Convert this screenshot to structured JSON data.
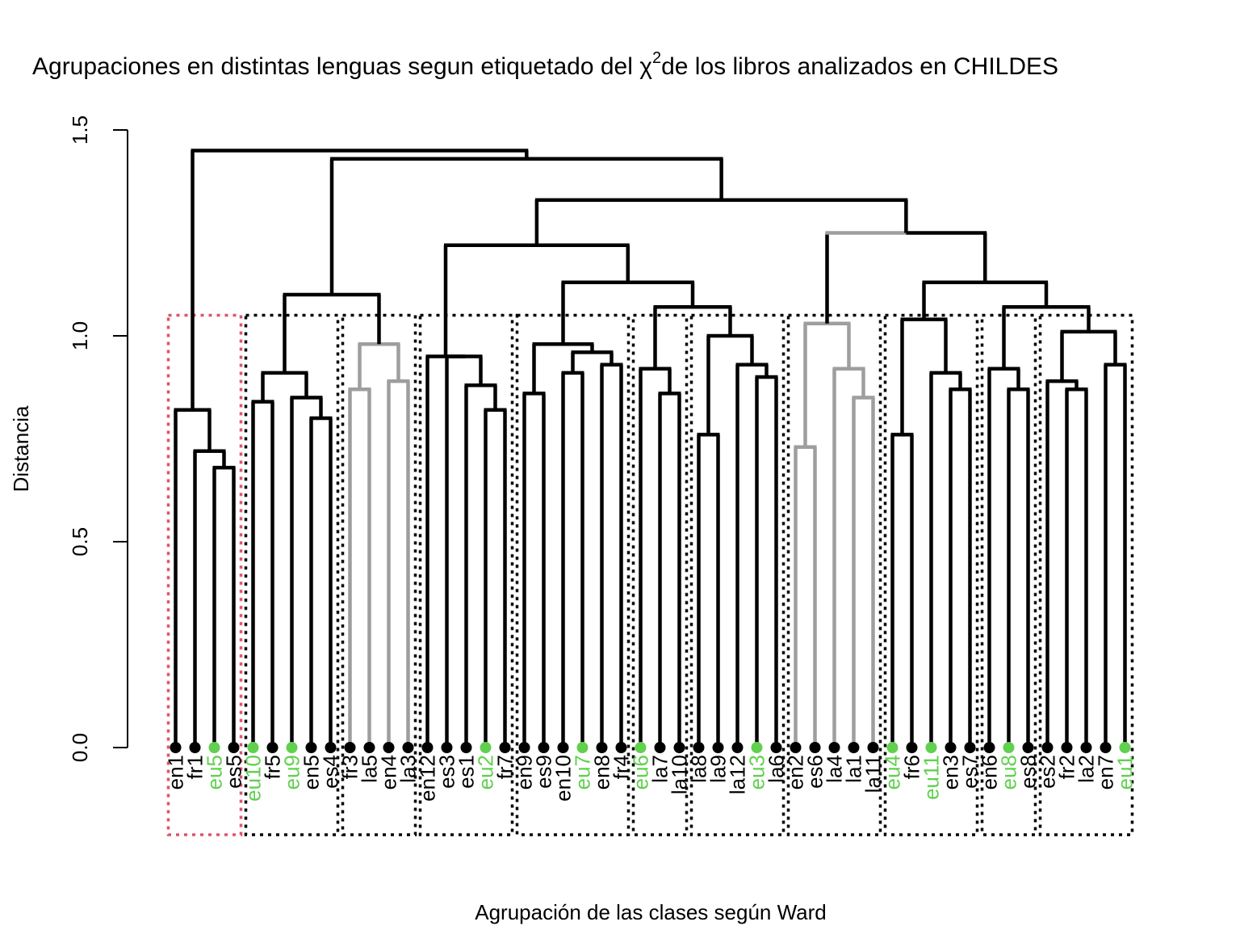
{
  "chart_data": {
    "type": "dendrogram",
    "title": "Agrupaciones en distintas lenguas segun etiquetado del χ²de los libros analizados en CHILDES",
    "title_parts": {
      "before": "Agrupaciones en distintas lenguas segun etiquetado del χ",
      "superscript": "2",
      "after": "de los libros analizados en CHILDES"
    },
    "xlabel": "Agrupación de las clases según Ward",
    "ylabel": "Distancia",
    "ylim": [
      0,
      1.5
    ],
    "yticks": [
      0.0,
      0.5,
      1.0,
      1.5
    ],
    "ytick_labels": [
      "0.0",
      "0.5",
      "1.0",
      "1.5"
    ],
    "colors": {
      "default": "#000000",
      "basque": "#61D04F",
      "gray_branch": "#9E9E9E",
      "highlight_box": "#DF536B",
      "box": "#000000"
    },
    "leaves": [
      "en1",
      "fr1",
      "eu5",
      "es5",
      "eu10",
      "fr5",
      "eu9",
      "en5",
      "es4",
      "fr3",
      "la5",
      "en4",
      "la3",
      "en12",
      "es3",
      "es1",
      "eu2",
      "fr7",
      "en9",
      "es9",
      "en10",
      "eu7",
      "en8",
      "fr4",
      "eu6",
      "la7",
      "la10",
      "la8",
      "la9",
      "la12",
      "eu3",
      "la6",
      "en2",
      "es6",
      "la4",
      "la1",
      "la11",
      "eu4",
      "fr6",
      "eu11",
      "en3",
      "es7",
      "en6",
      "eu8",
      "es8",
      "es2",
      "fr2",
      "la2",
      "en7",
      "eu1"
    ],
    "highlight_leaves": [
      "eu5",
      "eu10",
      "eu9",
      "eu2",
      "eu7",
      "eu6",
      "eu3",
      "eu4",
      "eu11",
      "eu8",
      "eu1"
    ],
    "merges": [
      {
        "id": "n1",
        "children": [
          "es5",
          "eu5"
        ],
        "height": 0.68
      },
      {
        "id": "n2",
        "children": [
          "fr1",
          "n1"
        ],
        "height": 0.72
      },
      {
        "id": "n3",
        "children": [
          "en1",
          "n2"
        ],
        "height": 0.82
      },
      {
        "id": "n4",
        "children": [
          "es4",
          "en5"
        ],
        "height": 0.8
      },
      {
        "id": "n5",
        "children": [
          "eu9",
          "n4"
        ],
        "height": 0.85
      },
      {
        "id": "n6",
        "children": [
          "fr5",
          "eu10"
        ],
        "height": 0.84
      },
      {
        "id": "n7",
        "children": [
          "n6",
          "n5"
        ],
        "height": 0.91
      },
      {
        "id": "n8",
        "children": [
          "la5",
          "fr3"
        ],
        "height": 0.87,
        "color": "gray"
      },
      {
        "id": "n9",
        "children": [
          "la3",
          "en4"
        ],
        "height": 0.89,
        "color": "gray"
      },
      {
        "id": "n10",
        "children": [
          "n8",
          "n9"
        ],
        "height": 0.98,
        "color": "gray"
      },
      {
        "id": "n11",
        "children": [
          "n7",
          "n10"
        ],
        "height": 1.1
      },
      {
        "id": "n12",
        "children": [
          "fr7",
          "eu2"
        ],
        "height": 0.82
      },
      {
        "id": "n13",
        "children": [
          "es1",
          "n12"
        ],
        "height": 0.88
      },
      {
        "id": "n14",
        "children": [
          "es3",
          "n13"
        ],
        "height": 0.95
      },
      {
        "id": "n15",
        "children": [
          "en12",
          "n14"
        ],
        "height": 0.95
      },
      {
        "id": "n16",
        "children": [
          "es9",
          "en9"
        ],
        "height": 0.86
      },
      {
        "id": "n17",
        "children": [
          "eu7",
          "en10"
        ],
        "height": 0.91
      },
      {
        "id": "n18",
        "children": [
          "fr4",
          "en8"
        ],
        "height": 0.93
      },
      {
        "id": "n19",
        "children": [
          "n17",
          "n18"
        ],
        "height": 0.96
      },
      {
        "id": "n20",
        "children": [
          "n16",
          "n19"
        ],
        "height": 0.98
      },
      {
        "id": "n21",
        "children": [
          "la10",
          "la7"
        ],
        "height": 0.86
      },
      {
        "id": "n22",
        "children": [
          "eu6",
          "n21"
        ],
        "height": 0.92
      },
      {
        "id": "n23",
        "children": [
          "la9",
          "la8"
        ],
        "height": 0.76
      },
      {
        "id": "n24",
        "children": [
          "la6",
          "eu3"
        ],
        "height": 0.9
      },
      {
        "id": "n25",
        "children": [
          "la12",
          "n24"
        ],
        "height": 0.93
      },
      {
        "id": "n26",
        "children": [
          "n23",
          "n25"
        ],
        "height": 1.0
      },
      {
        "id": "n27",
        "children": [
          "n22",
          "n26"
        ],
        "height": 1.07
      },
      {
        "id": "n28",
        "children": [
          "n20",
          "n27"
        ],
        "height": 1.13
      },
      {
        "id": "n29",
        "children": [
          "n15",
          "n28"
        ],
        "height": 1.22
      },
      {
        "id": "n30",
        "children": [
          "es6",
          "en2"
        ],
        "height": 0.73,
        "color": "gray"
      },
      {
        "id": "n31",
        "children": [
          "la11",
          "la1"
        ],
        "height": 0.85,
        "color": "gray"
      },
      {
        "id": "n32",
        "children": [
          "la4",
          "n31"
        ],
        "height": 0.92,
        "color": "gray"
      },
      {
        "id": "n33",
        "children": [
          "n30",
          "n32"
        ],
        "height": 1.03,
        "color": "gray"
      },
      {
        "id": "n34",
        "children": [
          "fr6",
          "eu4"
        ],
        "height": 0.76
      },
      {
        "id": "n35",
        "children": [
          "es7",
          "en3"
        ],
        "height": 0.87
      },
      {
        "id": "n36",
        "children": [
          "eu11",
          "n35"
        ],
        "height": 0.91
      },
      {
        "id": "n37",
        "children": [
          "n34",
          "n36"
        ],
        "height": 1.04
      },
      {
        "id": "n38",
        "children": [
          "es8",
          "eu8"
        ],
        "height": 0.87
      },
      {
        "id": "n39",
        "children": [
          "en6",
          "n38"
        ],
        "height": 0.92
      },
      {
        "id": "n40",
        "children": [
          "la2",
          "fr2"
        ],
        "height": 0.87
      },
      {
        "id": "n41",
        "children": [
          "es2",
          "n40"
        ],
        "height": 0.89
      },
      {
        "id": "n42",
        "children": [
          "eu1",
          "en7"
        ],
        "height": 0.93
      },
      {
        "id": "n43",
        "children": [
          "n41",
          "n42"
        ],
        "height": 1.01
      },
      {
        "id": "n44",
        "children": [
          "n39",
          "n43"
        ],
        "height": 1.07
      },
      {
        "id": "n45",
        "children": [
          "n37",
          "n44"
        ],
        "height": 1.13
      },
      {
        "id": "n46",
        "children": [
          "n33",
          "n45"
        ],
        "height": 1.25,
        "color": "gray_left"
      },
      {
        "id": "n47",
        "children": [
          "n29",
          "n46"
        ],
        "height": 1.33
      },
      {
        "id": "n48",
        "children": [
          "n11",
          "n47"
        ],
        "height": 1.43
      },
      {
        "id": "n49",
        "children": [
          "n3",
          "n48"
        ],
        "height": 1.45
      }
    ],
    "cluster_boxes": [
      {
        "first": "en1",
        "last": "es5",
        "highlight": true
      },
      {
        "first": "eu10",
        "last": "es4"
      },
      {
        "first": "fr3",
        "last": "la3"
      },
      {
        "first": "en12",
        "last": "fr7"
      },
      {
        "first": "en9",
        "last": "fr4"
      },
      {
        "first": "eu6",
        "last": "la10"
      },
      {
        "first": "la8",
        "last": "la6"
      },
      {
        "first": "en2",
        "last": "la11"
      },
      {
        "first": "eu4",
        "last": "es7"
      },
      {
        "first": "en6",
        "last": "es8"
      },
      {
        "first": "es2",
        "last": "eu1"
      }
    ],
    "cluster_box_top": 1.05
  }
}
